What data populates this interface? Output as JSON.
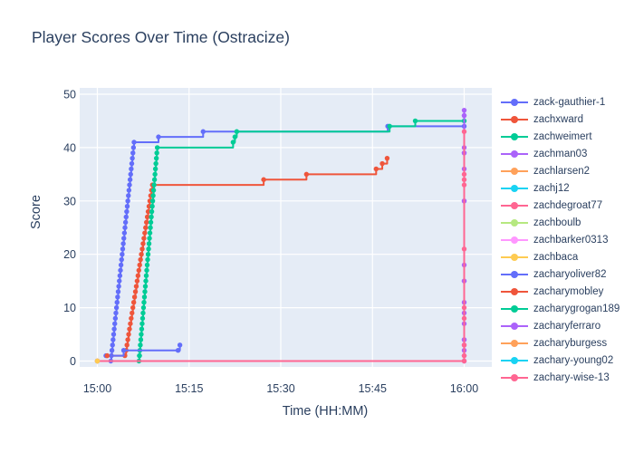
{
  "chart_data": {
    "type": "line",
    "line_shape": "hv",
    "title": "Player Scores Over Time (Ostracize)",
    "xlabel": "Time (HH:MM)",
    "ylabel": "Score",
    "x_range_minutes": [
      0,
      60
    ],
    "ylim": [
      0,
      50
    ],
    "grid": true,
    "legend_position": "right",
    "plot_bg": "#E5ECF6",
    "grid_color": "#FFFFFF",
    "text_color": "#2a3f5f",
    "x_ticks": [
      {
        "v": 0,
        "label": "15:00"
      },
      {
        "v": 15,
        "label": "15:15"
      },
      {
        "v": 30,
        "label": "15:30"
      },
      {
        "v": 45,
        "label": "15:45"
      },
      {
        "v": 60,
        "label": "16:00"
      }
    ],
    "y_ticks": [
      {
        "v": 0,
        "label": "0"
      },
      {
        "v": 10,
        "label": "10"
      },
      {
        "v": 20,
        "label": "20"
      },
      {
        "v": 30,
        "label": "30"
      },
      {
        "v": 40,
        "label": "40"
      },
      {
        "v": 50,
        "label": "50"
      }
    ],
    "series": [
      {
        "name": "zack-gauthier-1",
        "color": "#636EFA",
        "points": [
          {
            "r": [
              2.2,
              0,
              6.0,
              41
            ]
          },
          [
            10,
            42
          ],
          [
            17.3,
            43
          ],
          [
            47.5,
            44
          ],
          [
            60,
            44
          ]
        ]
      },
      {
        "name": "zachxward",
        "color": "#EF553B",
        "points": [
          [
            1.6,
            1
          ],
          [
            4.5,
            1
          ],
          {
            "r": [
              4.7,
              2,
              9.0,
              33
            ]
          },
          [
            27.2,
            34
          ],
          [
            34.2,
            35
          ],
          [
            45.6,
            36
          ],
          [
            46.6,
            37
          ],
          [
            47.4,
            38
          ]
        ]
      },
      {
        "name": "zachweimert",
        "color": "#00CC96",
        "points": [
          {
            "r": [
              6.8,
              0,
              9.8,
              40
            ]
          },
          [
            22.2,
            41
          ],
          [
            22.5,
            42
          ],
          [
            22.8,
            43
          ],
          [
            47.8,
            44
          ],
          [
            52,
            45
          ],
          [
            60,
            45
          ]
        ]
      },
      {
        "name": "zachman03",
        "color": "#AB63FA",
        "points": [
          [
            60,
            0
          ],
          [
            60,
            1
          ],
          [
            60,
            2
          ],
          [
            60,
            3
          ],
          [
            60,
            4
          ],
          [
            60,
            7
          ],
          [
            60,
            9
          ],
          [
            60,
            11
          ],
          [
            60,
            15
          ],
          [
            60,
            18
          ],
          [
            60,
            30
          ],
          [
            60,
            36
          ],
          [
            60,
            39
          ],
          [
            60,
            40
          ],
          [
            60,
            46
          ],
          [
            60,
            47
          ]
        ]
      },
      {
        "name": "zachj12",
        "color": "#19D3F3",
        "points": [
          [
            0,
            0
          ]
        ]
      },
      {
        "name": "zachdegroat77",
        "color": "#FF6692",
        "points": [
          [
            0,
            0
          ]
        ]
      },
      {
        "name": "zachboulb",
        "color": "#B6E880",
        "points": [
          [
            0,
            0
          ]
        ]
      },
      {
        "name": "zachbarker0313",
        "color": "#FF97FF",
        "points": [
          [
            0,
            0
          ]
        ]
      },
      {
        "name": "zacharyoliver82",
        "color": "#636EFA",
        "points": [
          [
            1.4,
            1
          ],
          [
            4.3,
            2
          ],
          [
            13.2,
            2
          ],
          [
            13.5,
            3
          ]
        ]
      },
      {
        "name": "zacharymobley",
        "color": "#EF553B",
        "points": [
          [
            1.6,
            1
          ]
        ]
      },
      {
        "name": "zacharygrogan189",
        "color": "#00CC96",
        "points": [
          [
            6.9,
            1
          ]
        ]
      },
      {
        "name": "zacharyferraro",
        "color": "#AB63FA",
        "points": [
          [
            60,
            0
          ],
          [
            60,
            4
          ],
          [
            60,
            15
          ],
          [
            60,
            30
          ],
          [
            60,
            39
          ],
          [
            60,
            46
          ]
        ]
      },
      {
        "name": "zachary-young02",
        "color": "#19D3F3",
        "points": [
          [
            0,
            0
          ]
        ]
      },
      {
        "name": "zachary-wise-13",
        "color": "#FF6692",
        "points": [
          [
            0,
            0
          ],
          [
            60,
            0
          ],
          [
            60,
            1
          ],
          [
            60,
            3
          ],
          [
            60,
            8
          ],
          [
            60,
            10
          ],
          [
            60,
            21
          ],
          [
            60,
            33
          ],
          [
            60,
            34
          ],
          [
            60,
            35
          ],
          [
            60,
            43
          ]
        ]
      },
      {
        "name": "zacharyburgess",
        "color": "#FFA15A",
        "points": [
          [
            0,
            0
          ]
        ]
      },
      {
        "name": "zachlarsen2",
        "color": "#FFA15A",
        "points": [
          [
            0,
            0
          ]
        ]
      },
      {
        "name": "zachbaca",
        "color": "#FECB52",
        "points": [
          [
            0,
            0
          ]
        ]
      }
    ]
  },
  "legend": {
    "items": [
      {
        "label": "zack-gauthier-1",
        "color": "#636EFA"
      },
      {
        "label": "zachxward",
        "color": "#EF553B"
      },
      {
        "label": "zachweimert",
        "color": "#00CC96"
      },
      {
        "label": "zachman03",
        "color": "#AB63FA"
      },
      {
        "label": "zachlarsen2",
        "color": "#FFA15A"
      },
      {
        "label": "zachj12",
        "color": "#19D3F3"
      },
      {
        "label": "zachdegroat77",
        "color": "#FF6692"
      },
      {
        "label": "zachboulb",
        "color": "#B6E880"
      },
      {
        "label": "zachbarker0313",
        "color": "#FF97FF"
      },
      {
        "label": "zachbaca",
        "color": "#FECB52"
      },
      {
        "label": "zacharyoliver82",
        "color": "#636EFA"
      },
      {
        "label": "zacharymobley",
        "color": "#EF553B"
      },
      {
        "label": "zacharygrogan189",
        "color": "#00CC96"
      },
      {
        "label": "zacharyferraro",
        "color": "#AB63FA"
      },
      {
        "label": "zacharyburgess",
        "color": "#FFA15A"
      },
      {
        "label": "zachary-young02",
        "color": "#19D3F3"
      },
      {
        "label": "zachary-wise-13",
        "color": "#FF6692"
      }
    ]
  }
}
